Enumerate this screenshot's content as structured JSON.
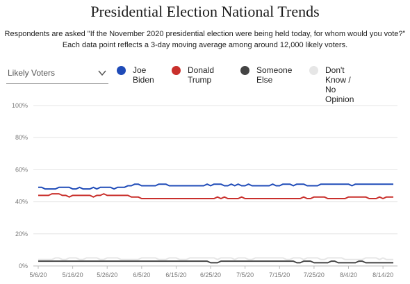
{
  "title": "Presidential Election National Trends",
  "subtitle_line1": "Respondents are asked \"If the November 2020 presidential election were being held today, for whom would you vote?\"",
  "subtitle_line2": "Each data point reflects a 3-day moving average among around 12,000 likely voters.",
  "filter": {
    "selected": "Likely Voters",
    "icon": "chevron-down-icon"
  },
  "legend": [
    {
      "line1": "Joe",
      "line2": "Biden",
      "color": "#1f4bb8"
    },
    {
      "line1": "Donald",
      "line2": "Trump",
      "color": "#c9302c"
    },
    {
      "line1": "Someone",
      "line2": "Else",
      "color": "#444444"
    },
    {
      "line1": "Don't Know / No",
      "line2": "Opinion",
      "color": "#e6e6e6"
    }
  ],
  "chart_data": {
    "type": "line",
    "title": "Presidential Election National Trends",
    "xlabel": "",
    "ylabel": "",
    "ylim": [
      0,
      100
    ],
    "yticks": [
      "0%",
      "20%",
      "40%",
      "60%",
      "80%",
      "100%"
    ],
    "xticks": [
      "5/6/20",
      "5/16/20",
      "5/26/20",
      "6/5/20",
      "6/15/20",
      "6/25/20",
      "7/5/20",
      "7/15/20",
      "7/25/20",
      "8/4/20",
      "8/14/20"
    ],
    "x_start": "5/6/20",
    "x_end": "8/17/20",
    "grid": true,
    "legend_position": "top",
    "series": [
      {
        "name": "Joe Biden",
        "color": "#1f4bb8",
        "values": [
          49,
          49,
          48,
          48,
          48,
          48,
          49,
          49,
          49,
          49,
          48,
          48,
          49,
          48,
          48,
          48,
          49,
          48,
          49,
          49,
          49,
          49,
          48,
          49,
          49,
          49,
          50,
          50,
          51,
          51,
          50,
          50,
          50,
          50,
          50,
          51,
          51,
          51,
          50,
          50,
          50,
          50,
          50,
          50,
          50,
          50,
          50,
          50,
          50,
          51,
          50,
          51,
          51,
          51,
          50,
          50,
          51,
          50,
          51,
          50,
          50,
          51,
          50,
          50,
          50,
          50,
          50,
          50,
          51,
          50,
          50,
          51,
          51,
          51,
          50,
          51,
          51,
          51,
          50,
          50,
          50,
          50,
          51,
          51,
          51,
          51,
          51,
          51,
          51,
          51,
          51,
          50,
          51,
          51,
          51,
          51,
          51,
          51,
          51,
          51,
          51,
          51,
          51,
          51
        ]
      },
      {
        "name": "Donald Trump",
        "color": "#c9302c",
        "values": [
          44,
          44,
          44,
          44,
          45,
          45,
          45,
          44,
          44,
          43,
          44,
          44,
          44,
          44,
          44,
          44,
          43,
          44,
          44,
          45,
          44,
          44,
          44,
          44,
          44,
          44,
          44,
          43,
          43,
          43,
          42,
          42,
          42,
          42,
          42,
          42,
          42,
          42,
          42,
          42,
          42,
          42,
          42,
          42,
          42,
          42,
          42,
          42,
          42,
          42,
          42,
          42,
          43,
          42,
          43,
          42,
          42,
          42,
          42,
          43,
          42,
          42,
          42,
          42,
          42,
          42,
          42,
          42,
          42,
          42,
          42,
          42,
          42,
          42,
          42,
          42,
          42,
          43,
          42,
          42,
          43,
          43,
          43,
          43,
          42,
          42,
          42,
          42,
          42,
          42,
          43,
          43,
          43,
          43,
          43,
          43,
          42,
          42,
          42,
          43,
          42,
          43,
          43,
          43
        ]
      },
      {
        "name": "Someone Else",
        "color": "#444444",
        "values": [
          3,
          3,
          3,
          3,
          3,
          3,
          3,
          3,
          3,
          3,
          3,
          3,
          3,
          3,
          3,
          3,
          3,
          3,
          3,
          3,
          3,
          3,
          3,
          3,
          3,
          3,
          3,
          3,
          3,
          3,
          3,
          3,
          3,
          3,
          3,
          3,
          3,
          3,
          3,
          3,
          3,
          3,
          3,
          3,
          3,
          3,
          3,
          3,
          3,
          3,
          2,
          2,
          2,
          3,
          3,
          3,
          3,
          3,
          3,
          3,
          3,
          3,
          3,
          3,
          3,
          3,
          3,
          3,
          3,
          3,
          3,
          3,
          3,
          3,
          3,
          2,
          2,
          3,
          3,
          3,
          2,
          2,
          2,
          2,
          2,
          3,
          3,
          2,
          2,
          2,
          2,
          2,
          2,
          3,
          3,
          2,
          2,
          2,
          2,
          2,
          2,
          2,
          2,
          2
        ]
      },
      {
        "name": "Don't Know / No Opinion",
        "color": "#e6e6e6",
        "values": [
          4,
          4,
          4,
          4,
          4,
          5,
          5,
          4,
          4,
          5,
          5,
          5,
          4,
          4,
          5,
          5,
          5,
          5,
          4,
          4,
          5,
          5,
          5,
          5,
          4,
          4,
          4,
          4,
          4,
          4,
          5,
          5,
          5,
          5,
          5,
          4,
          4,
          4,
          5,
          5,
          5,
          4,
          4,
          4,
          5,
          5,
          5,
          5,
          5,
          5,
          5,
          5,
          4,
          5,
          5,
          5,
          5,
          4,
          5,
          5,
          5,
          4,
          4,
          5,
          5,
          5,
          5,
          5,
          5,
          5,
          5,
          5,
          4,
          4,
          5,
          5,
          5,
          4,
          5,
          5,
          5,
          5,
          4,
          4,
          5,
          5,
          5,
          5,
          5,
          4,
          4,
          4,
          4,
          4,
          4,
          5,
          5,
          5,
          5,
          4,
          5,
          4,
          4,
          4
        ]
      }
    ]
  }
}
